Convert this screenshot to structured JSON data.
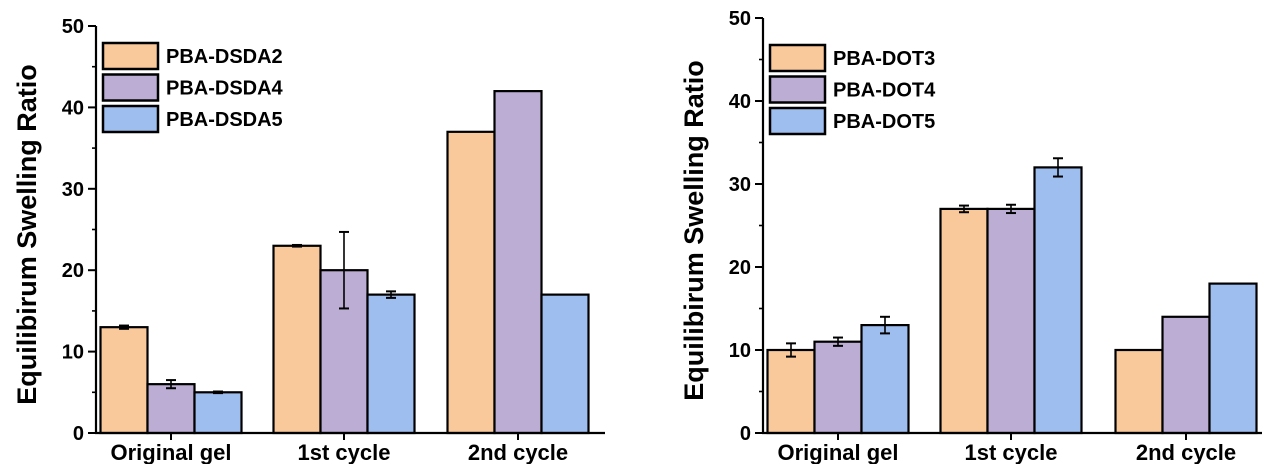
{
  "colors": {
    "orange": "#f9c89b",
    "purple": "#bcadd4",
    "blue": "#9ebef0",
    "stroke": "#000000"
  },
  "chart_data": [
    {
      "type": "bar",
      "categories": [
        "Original gel",
        "1st cycle",
        "2nd cycle"
      ],
      "ylabel": "Equilibirum Swelling Ratio",
      "xlabel": "",
      "ylim": [
        0,
        50
      ],
      "yticks": [
        0,
        10,
        20,
        30,
        40,
        50
      ],
      "legend_position": "top-left",
      "series": [
        {
          "name": "PBA-DSDA2",
          "color": "#f9c89b",
          "values": [
            13,
            23,
            37
          ],
          "errors": [
            0.2,
            0.1,
            0
          ]
        },
        {
          "name": "PBA-DSDA4",
          "color": "#bcadd4",
          "values": [
            6,
            20,
            42
          ],
          "errors": [
            0.5,
            4.7,
            0
          ]
        },
        {
          "name": "PBA-DSDA5",
          "color": "#9ebef0",
          "values": [
            5,
            17,
            17
          ],
          "errors": [
            0.1,
            0.4,
            0
          ]
        }
      ]
    },
    {
      "type": "bar",
      "categories": [
        "Original gel",
        "1st cycle",
        "2nd cycle"
      ],
      "ylabel": "Equilibirum Swelling Ratio",
      "xlabel": "",
      "ylim": [
        0,
        50
      ],
      "yticks": [
        0,
        10,
        20,
        30,
        40,
        50
      ],
      "legend_position": "top-left",
      "series": [
        {
          "name": "PBA-DOT3",
          "color": "#f9c89b",
          "values": [
            10,
            27,
            10
          ],
          "errors": [
            0.8,
            0.4,
            0
          ]
        },
        {
          "name": "PBA-DOT4",
          "color": "#bcadd4",
          "values": [
            11,
            27,
            14
          ],
          "errors": [
            0.5,
            0.5,
            0
          ]
        },
        {
          "name": "PBA-DOT5",
          "color": "#9ebef0",
          "values": [
            13,
            32,
            18
          ],
          "errors": [
            1.0,
            1.1,
            0
          ]
        }
      ]
    }
  ]
}
